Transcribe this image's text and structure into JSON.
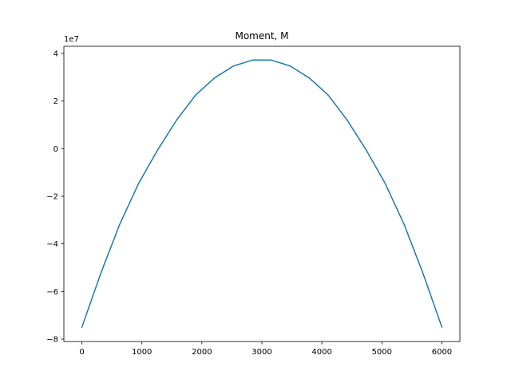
{
  "chart_data": {
    "type": "line",
    "title": "Moment, M",
    "offset_label": "1e7",
    "xlabel": "",
    "ylabel": "",
    "xlim": [
      -300,
      6300
    ],
    "ylim": [
      -8.1,
      4.3
    ],
    "x_ticks": [
      0,
      1000,
      2000,
      3000,
      4000,
      5000,
      6000
    ],
    "x_tick_labels": [
      "0",
      "1000",
      "2000",
      "3000",
      "4000",
      "5000",
      "6000"
    ],
    "y_ticks": [
      -8,
      -6,
      -4,
      -2,
      0,
      2,
      4
    ],
    "y_tick_labels": [
      "−8",
      "−6",
      "−4",
      "−2",
      "0",
      "2",
      "4"
    ],
    "grid": false,
    "series": [
      {
        "color": "#1f77b4",
        "x": [
          0,
          315.8,
          631.6,
          947.4,
          1263.2,
          1578.9,
          1894.7,
          2210.5,
          2526.3,
          2842.1,
          3157.9,
          3473.7,
          3789.5,
          4105.3,
          4421.1,
          4736.8,
          5052.6,
          5368.4,
          5684.2,
          6000
        ],
        "y": [
          -7.5,
          -5.23,
          -3.17,
          -1.45,
          -0.05,
          1.2,
          2.25,
          2.97,
          3.47,
          3.72,
          3.72,
          3.47,
          2.97,
          2.25,
          1.2,
          -0.05,
          -1.45,
          -3.17,
          -5.23,
          -7.5
        ]
      }
    ]
  }
}
